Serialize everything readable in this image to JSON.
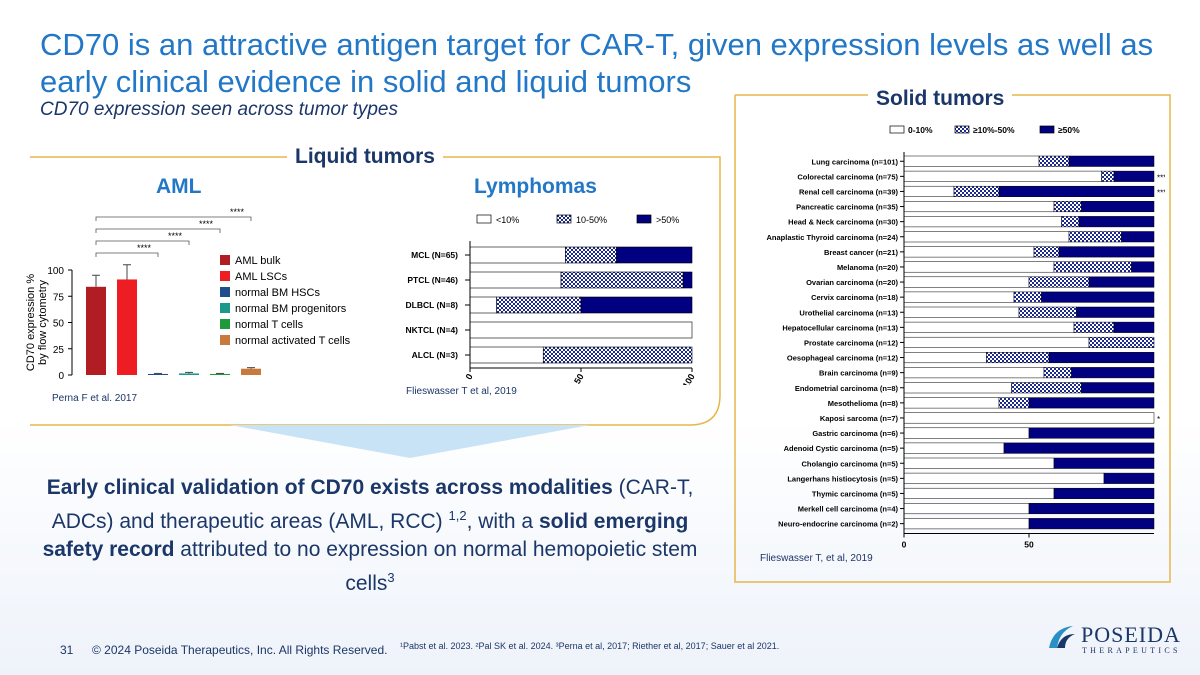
{
  "title": "CD70 is an attractive antigen target for CAR-T, given expression levels as well as early clinical evidence in solid and liquid tumors",
  "subtitle": "CD70 expression seen across tumor types",
  "liquid": {
    "label": "Liquid tumors",
    "aml_heading": "AML",
    "lymphoma_heading": "Lymphomas",
    "aml_source": "Perna F et al. 2017",
    "lymphoma_source": "Flieswasser T et al, 2019"
  },
  "solid": {
    "label": "Solid tumors",
    "source": "Flieswasser T, et al, 2019"
  },
  "body": {
    "bold1": "Early clinical validation of CD70 exists across modalities",
    "text1": " (CAR-T, ADCs) and therapeutic areas (AML, RCC) ",
    "sup1": "1,2",
    "text2": ", with a ",
    "bold2": "solid emerging safety record",
    "text3": " attributed to no expression on normal hemopoietic stem cells",
    "sup2": "3"
  },
  "footer": {
    "page": "31",
    "copyright": "© 2024 Poseida Therapeutics, Inc. All Rights Reserved.",
    "refs": "¹Pabst et al. 2023. ²Pal SK et al. 2024. ³Perna et al, 2017; Riether et al, 2017; Sauer et al 2021.",
    "logo_word": "POSEIDA",
    "logo_sub": "THERAPEUTICS"
  },
  "colors": {
    "navy": "#000080",
    "accent_blue": "#2277c7",
    "dark_text": "#1b3668",
    "gold": "#e6b64a"
  },
  "chart_data": [
    {
      "type": "bar",
      "ylabel": "CD70 expression % by flow cytometry",
      "ylim": [
        0,
        100
      ],
      "yticks": [
        0,
        25,
        50,
        75,
        100
      ],
      "categories": [
        "AML bulk",
        "AML LSCs",
        "normal BM HSCs",
        "normal BM progenitors",
        "normal T cells",
        "normal activated T cells"
      ],
      "values": [
        84,
        91,
        1,
        1.5,
        1,
        6
      ],
      "errors": [
        11,
        14,
        0.5,
        1,
        0.5,
        1
      ],
      "colors": [
        "#b01e23",
        "#ee1d23",
        "#1f4e8c",
        "#1b9a8c",
        "#1e9a3c",
        "#c87a3c"
      ],
      "significance": [
        "****",
        "****",
        "****",
        "****"
      ]
    },
    {
      "type": "bar",
      "orientation": "horizontal-stacked",
      "legend": [
        "<10%",
        "10-50%",
        ">50%"
      ],
      "categories": [
        "MCL (N=65)",
        "PTCL (N=46)",
        "DLBCL (N=8)",
        "NKTCL (N=4)",
        "ALCL (N=3)"
      ],
      "series": [
        {
          "name": "<10%",
          "values": [
            43,
            41,
            12,
            100,
            33
          ]
        },
        {
          "name": "10-50%",
          "values": [
            23,
            55,
            38,
            0,
            67
          ]
        },
        {
          "name": ">50%",
          "values": [
            34,
            4,
            50,
            0,
            0
          ]
        }
      ],
      "xlim": [
        0,
        100
      ],
      "xticks": [
        0,
        50,
        100
      ]
    },
    {
      "type": "bar",
      "orientation": "horizontal-stacked",
      "legend": [
        "0-10%",
        "≥10%-50%",
        "≥50%"
      ],
      "categories": [
        "Lung carcinoma (n=101)",
        "Colorectal carcinoma (n=75)",
        "Renal cell carcinoma (n=39)",
        "Pancreatic carcinoma (n=35)",
        "Head & Neck carcinoma (n=30)",
        "Anaplastic Thyroid carcinoma (n=24)",
        "Breast cancer (n=21)",
        "Melanoma (n=20)",
        "Ovarian carcinoma (n=20)",
        "Cervix carcinoma (n=18)",
        "Urothelial carcinoma (n=13)",
        "Hepatocellular carcinoma (n=13)",
        "Prostate carcinoma (n=12)",
        "Oesophageal carcinoma (n=12)",
        "Brain carcinoma (n=9)",
        "Endometrial carcinoma (n=8)",
        "Mesothelioma (n=8)",
        "Kaposi sarcoma (n=7)",
        "Gastric carcinoma (n=6)",
        "Adenoid Cystic carcinoma (n=5)",
        "Cholangio carcinoma (n=5)",
        "Langerhans histiocytosis (n=5)",
        "Thymic carcinoma (n=5)",
        "Merkell cell carcinoma (n=4)",
        "Neuro-endocrine carcinoma (n=2)"
      ],
      "series": [
        {
          "name": "0-10%",
          "values": [
            54,
            79,
            20,
            60,
            63,
            66,
            52,
            60,
            50,
            44,
            46,
            68,
            74,
            33,
            56,
            43,
            38,
            100,
            50,
            40,
            60,
            80,
            60,
            50,
            50
          ]
        },
        {
          "name": "≥10%-50%",
          "values": [
            12,
            5,
            18,
            11,
            7,
            21,
            10,
            31,
            24,
            11,
            23,
            16,
            26,
            25,
            11,
            28,
            12,
            0,
            0,
            0,
            0,
            0,
            0,
            0,
            0
          ]
        },
        {
          "name": "≥50%",
          "values": [
            34,
            16,
            62,
            29,
            30,
            13,
            38,
            9,
            26,
            45,
            31,
            16,
            0,
            42,
            33,
            29,
            50,
            0,
            50,
            60,
            40,
            20,
            40,
            50,
            50
          ]
        }
      ],
      "significance": [
        "",
        "****",
        "****",
        "",
        "",
        "",
        "",
        "",
        "",
        "",
        "",
        "",
        "",
        "",
        "",
        "",
        "",
        "*",
        "",
        "",
        "",
        "",
        "",
        "",
        ""
      ],
      "xlim": [
        0,
        100
      ],
      "xticks": [
        0,
        50
      ]
    }
  ]
}
